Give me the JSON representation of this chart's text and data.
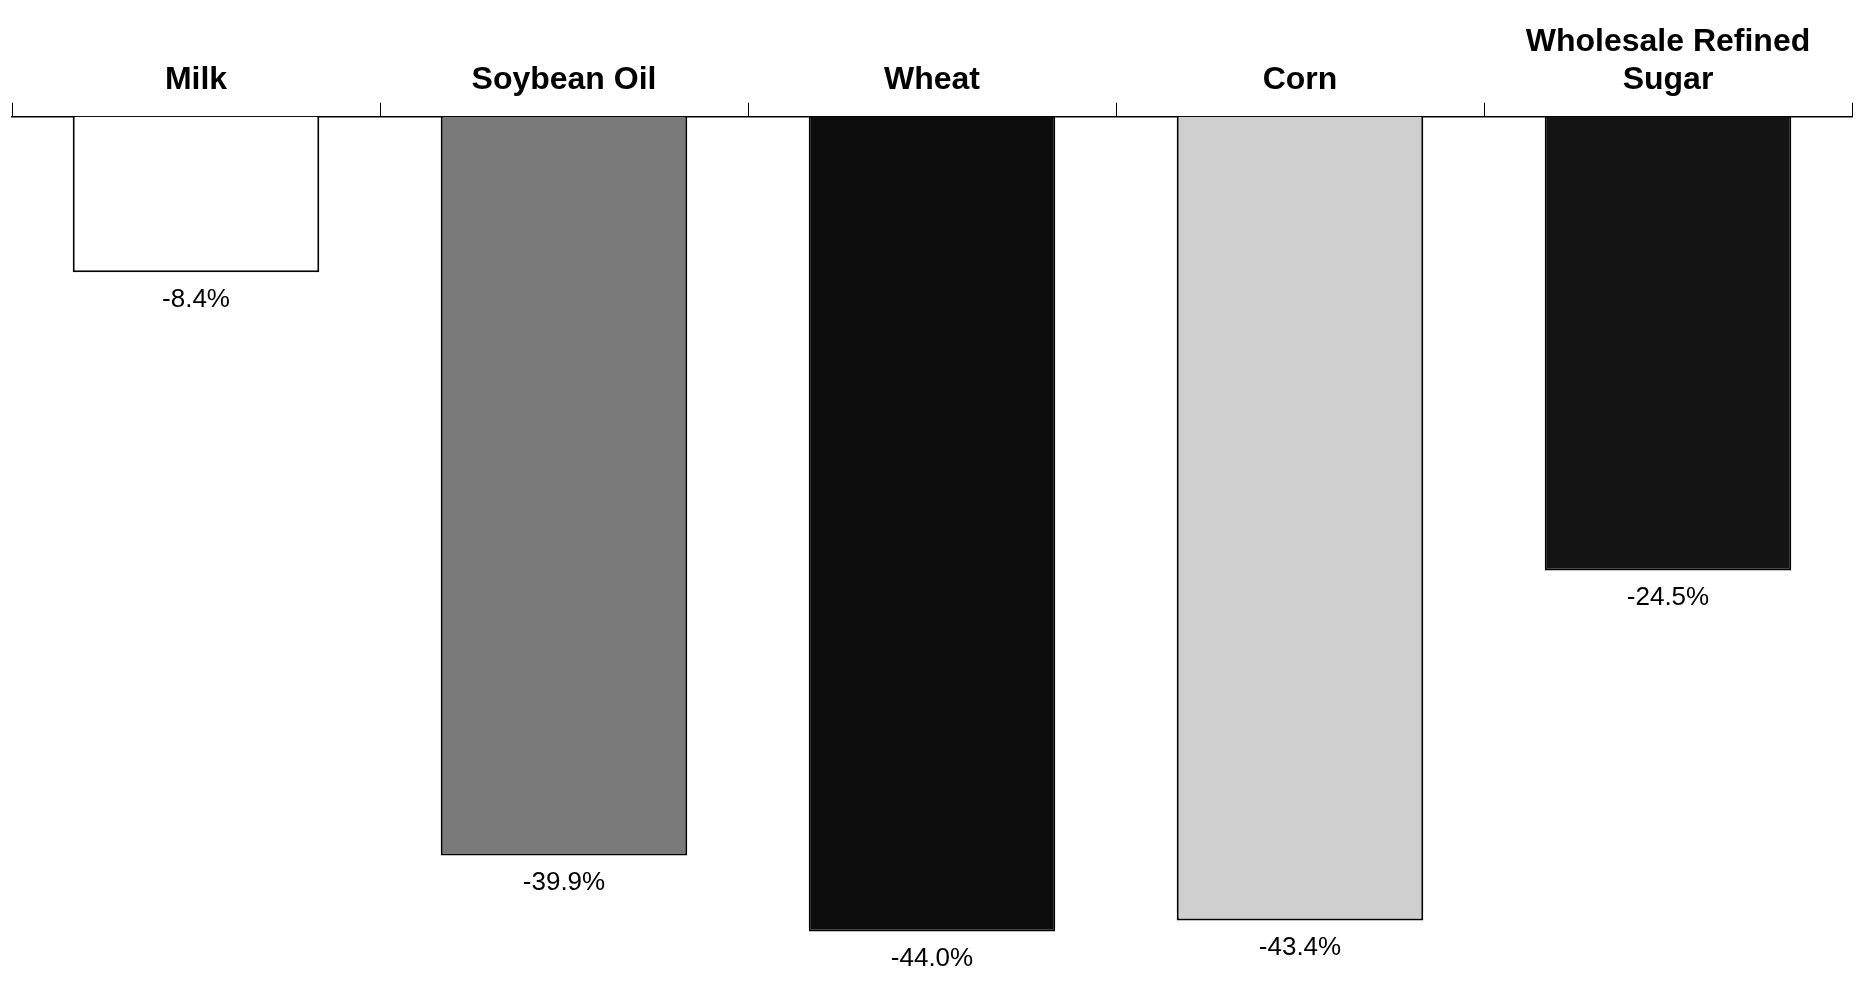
{
  "chart_data": {
    "type": "bar",
    "categories": [
      "Milk",
      "Soybean Oil",
      "Wheat",
      "Corn",
      "Wholesale Refined Sugar"
    ],
    "values": [
      -8.4,
      -39.9,
      -44.0,
      -43.4,
      -24.5
    ],
    "colors": [
      "#ffffff",
      "#7a7a7a",
      "#0d0d0d",
      "#cfcfcf",
      "#141414"
    ],
    "value_labels": [
      "-8.4%",
      "-39.9%",
      "-44.0%",
      "-43.4%",
      "-24.5%"
    ],
    "grid": false,
    "legend": false,
    "tick_labels": "x"
  }
}
